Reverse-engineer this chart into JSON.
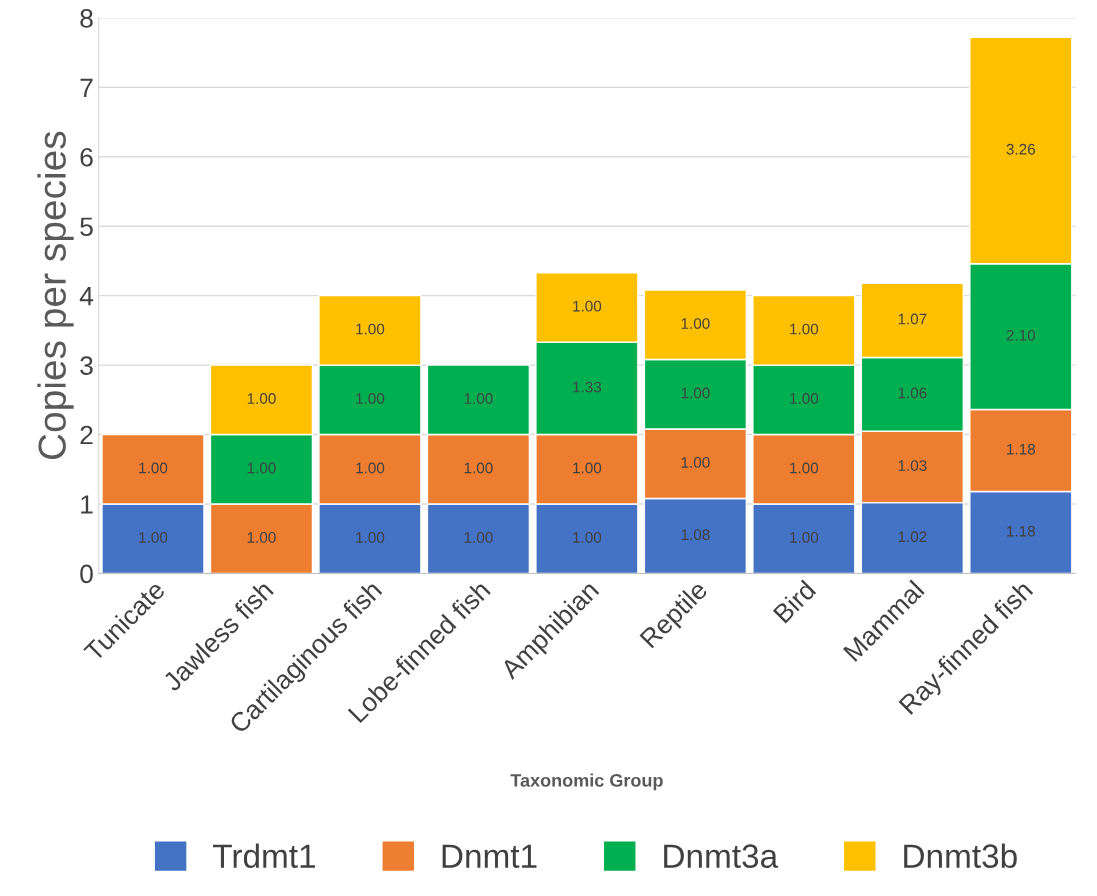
{
  "chart_data": {
    "type": "bar",
    "stacked": true,
    "xlabel": "Taxonomic Group",
    "ylabel": "Copies per species",
    "categories": [
      "Tunicate",
      "Jawless fish",
      "Cartilaginous fish",
      "Lobe-finned fish",
      "Amphibian",
      "Reptile",
      "Bird",
      "Mammal",
      "Ray-finned fish"
    ],
    "series": [
      {
        "name": "Trdmt1",
        "color": "#4472c4",
        "values": [
          1.0,
          null,
          1.0,
          1.0,
          1.0,
          1.08,
          1.0,
          1.02,
          1.18
        ],
        "value_labels": [
          "1.00",
          null,
          "1.00",
          "1.00",
          "1.00",
          "1.08",
          "1.00",
          "1.02",
          "1.18"
        ]
      },
      {
        "name": "Dnmt1",
        "color": "#ed7d31",
        "values": [
          1.0,
          1.0,
          1.0,
          1.0,
          1.0,
          1.0,
          1.0,
          1.03,
          1.18
        ],
        "value_labels": [
          "1.00",
          "1.00",
          "1.00",
          "1.00",
          "1.00",
          "1.00",
          "1.00",
          "1.03",
          "1.18"
        ]
      },
      {
        "name": "Dnmt3a",
        "color": "#00b050",
        "values": [
          null,
          1.0,
          1.0,
          1.0,
          1.33,
          1.0,
          1.0,
          1.06,
          2.1
        ],
        "value_labels": [
          null,
          "1.00",
          "1.00",
          "1.00",
          "1.33",
          "1.00",
          "1.00",
          "1.06",
          "2.10"
        ]
      },
      {
        "name": "Dnmt3b",
        "color": "#ffc000",
        "values": [
          null,
          1.0,
          1.0,
          null,
          1.0,
          1.0,
          1.0,
          1.07,
          3.26
        ],
        "value_labels": [
          null,
          "1.00",
          "1.00",
          null,
          "1.00",
          "1.00",
          "1.00",
          "1.07",
          "3.26"
        ]
      }
    ],
    "ylim": [
      0,
      8
    ],
    "yticks": [
      0,
      1,
      2,
      3,
      4,
      5,
      6,
      7,
      8
    ],
    "grid": "y",
    "legend": "bottom"
  }
}
